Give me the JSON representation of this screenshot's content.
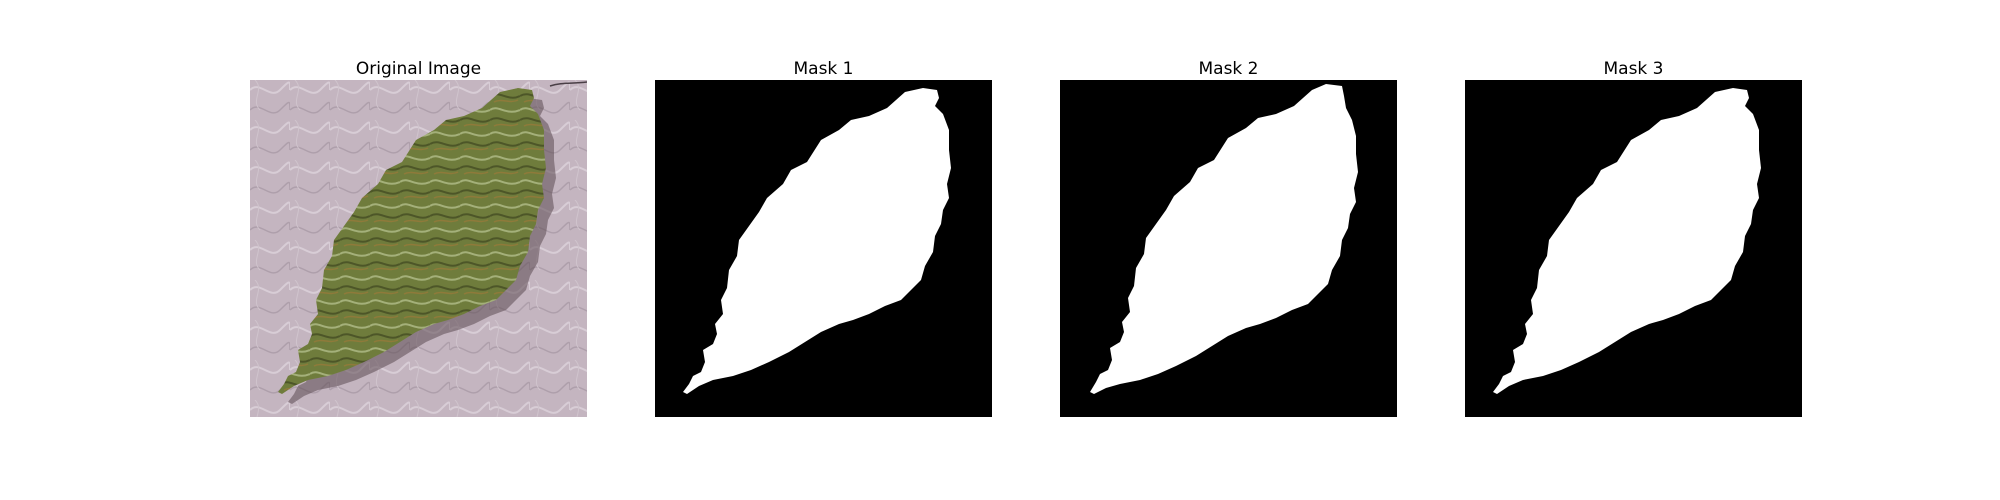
{
  "panels": [
    {
      "title": "Original Image"
    },
    {
      "title": "Mask 1"
    },
    {
      "title": "Mask 2"
    },
    {
      "title": "Mask 3"
    }
  ],
  "colors": {
    "background_texture": "#c2b2bd",
    "leaf": "#6f7c3c",
    "mask_background": "#000000",
    "mask_foreground": "#ffffff"
  }
}
